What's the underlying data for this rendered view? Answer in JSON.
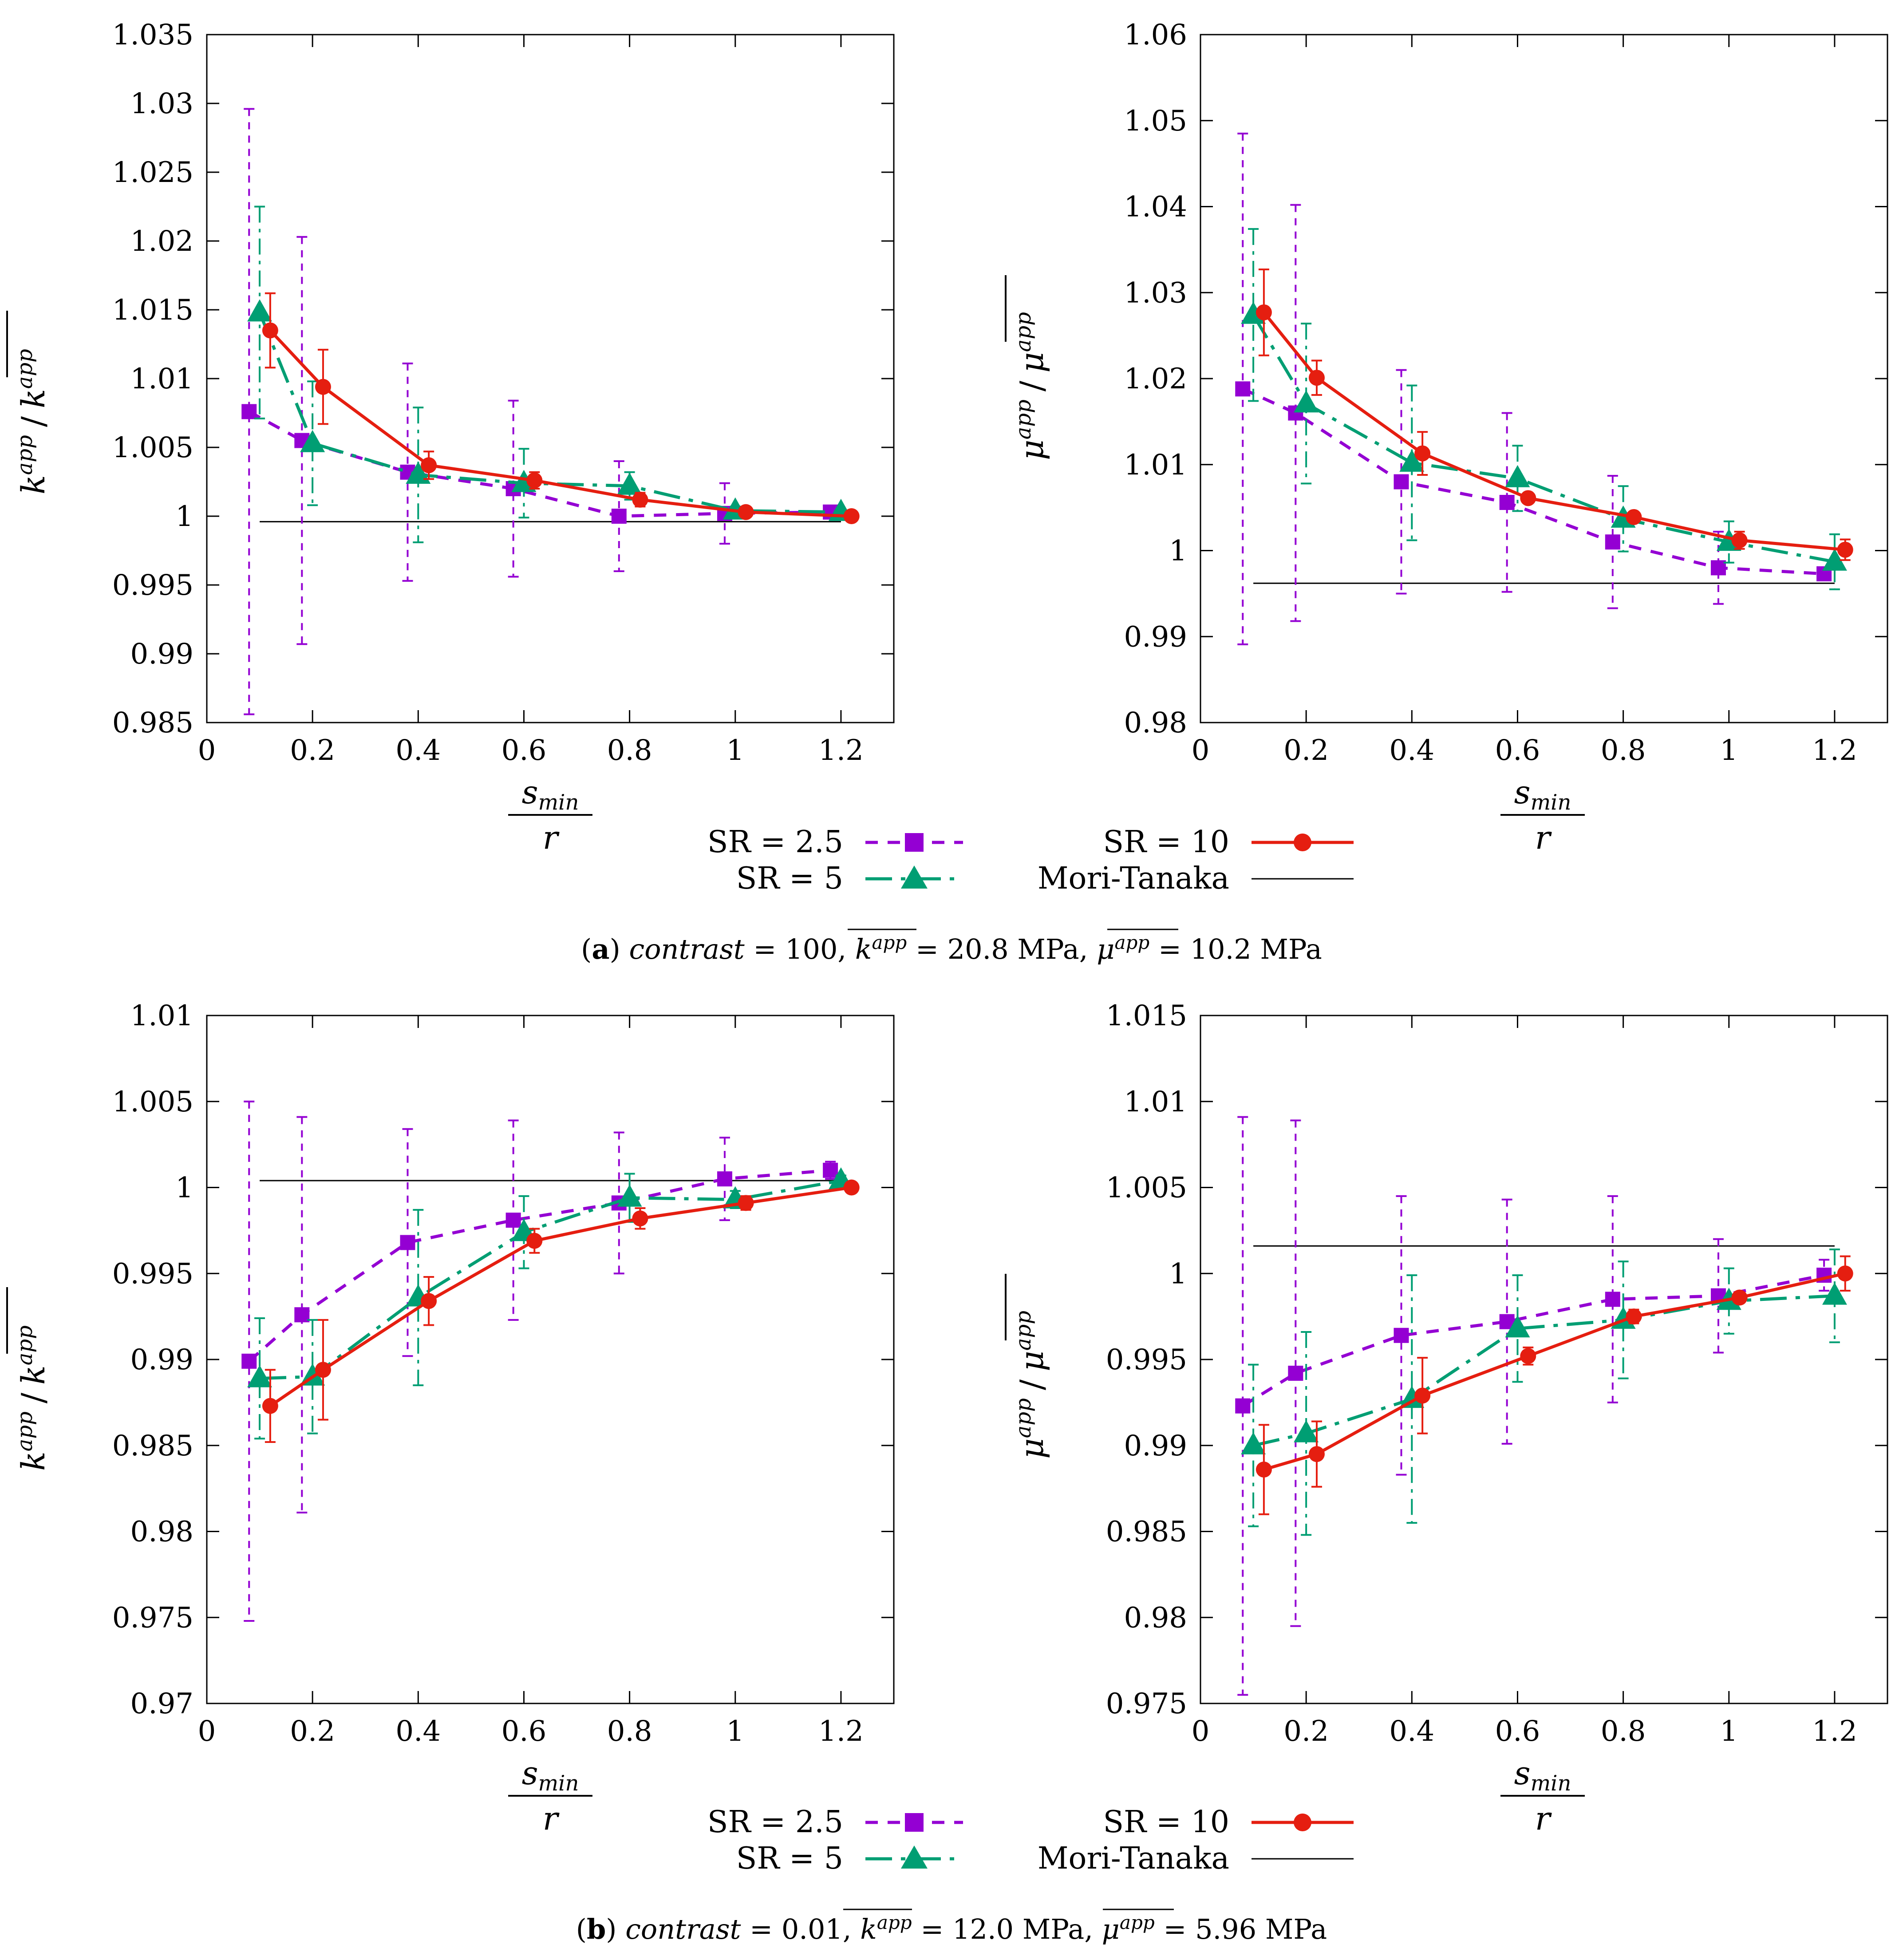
{
  "colors": {
    "sr25": "#9400d3",
    "sr5": "#009e73",
    "sr10": "#e51e10",
    "moriTanaka": "#000000"
  },
  "legend": {
    "sr25": "SR = 2.5",
    "sr5": "SR = 5",
    "sr10": "SR = 10",
    "mt": "Mori-Tanaka"
  },
  "captions": {
    "a": {
      "label": "a",
      "contrast_word": "contrast",
      "contrast_value": "= 100,",
      "k_sym": "k",
      "k_sup": "app",
      "k_value": "= 20.8 MPa,",
      "mu_sym": "μ",
      "mu_sup": "app",
      "mu_value": "= 10.2 MPa"
    },
    "b": {
      "label": "b",
      "contrast_word": "contrast",
      "contrast_value": "= 0.01,",
      "k_sym": "k",
      "k_sup": "app",
      "k_value": "= 12.0 MPa,",
      "mu_sym": "μ",
      "mu_sup": "app",
      "mu_value": "= 5.96 MPa"
    }
  },
  "axis_labels": {
    "x_num": "s",
    "x_num_sub": "min",
    "x_den": "r",
    "k_sym": "k",
    "mu_sym": "μ",
    "sup": "app",
    "slash": "/"
  },
  "chart_data": [
    {
      "id": "a-k",
      "type": "line",
      "title": "",
      "xlabel": "s_min / r",
      "ylabel": "k^app / mean(k^app)",
      "xlim": [
        0,
        1.3
      ],
      "ylim": [
        0.985,
        1.035
      ],
      "xticks": [
        "0",
        "0.2",
        "0.4",
        "0.6",
        "0.8",
        "1",
        "1.2"
      ],
      "yticks": [
        "0.985",
        "0.99",
        "0.995",
        "1",
        "1.005",
        "1.01",
        "1.015",
        "1.02",
        "1.025",
        "1.03",
        "1.035"
      ],
      "mori_tanaka": {
        "value": 0.9996,
        "xrange": [
          0.1,
          1.2
        ]
      },
      "series": [
        {
          "name": "SR = 2.5",
          "key": "sr25",
          "x": [
            0.08,
            0.18,
            0.38,
            0.58,
            0.78,
            0.98,
            1.18
          ],
          "y": [
            1.0076,
            1.0055,
            1.0032,
            1.002,
            1.0,
            1.0002,
            1.0003
          ],
          "err": [
            0.022,
            0.0148,
            0.0079,
            0.0064,
            0.004,
            0.0022,
            0.0003
          ]
        },
        {
          "name": "SR = 5",
          "key": "sr5",
          "x": [
            0.1,
            0.2,
            0.4,
            0.6,
            0.8,
            1.0,
            1.2
          ],
          "y": [
            1.0148,
            1.0053,
            1.003,
            1.0024,
            1.0022,
            1.0004,
            1.0003
          ],
          "err": [
            0.0077,
            0.0045,
            0.0049,
            0.0025,
            0.001,
            0.0003,
            0.0002
          ]
        },
        {
          "name": "SR = 10",
          "key": "sr10",
          "x": [
            0.12,
            0.22,
            0.42,
            0.62,
            0.82,
            1.02,
            1.22
          ],
          "y": [
            1.0135,
            1.0094,
            1.0037,
            1.0026,
            1.0012,
            1.0003,
            1.0
          ],
          "err": [
            0.0027,
            0.0027,
            0.001,
            0.0006,
            0.0005,
            0.0003,
            0.0001
          ]
        }
      ]
    },
    {
      "id": "a-mu",
      "type": "line",
      "title": "",
      "xlabel": "s_min / r",
      "ylabel": "μ^app / mean(μ^app)",
      "xlim": [
        0,
        1.3
      ],
      "ylim": [
        0.98,
        1.06
      ],
      "xticks": [
        "0",
        "0.2",
        "0.4",
        "0.6",
        "0.8",
        "1",
        "1.2"
      ],
      "yticks": [
        "0.98",
        "0.99",
        "1",
        "1.01",
        "1.02",
        "1.03",
        "1.04",
        "1.05",
        "1.06"
      ],
      "mori_tanaka": {
        "value": 0.9962,
        "xrange": [
          0.1,
          1.2
        ]
      },
      "series": [
        {
          "name": "SR = 2.5",
          "key": "sr25",
          "x": [
            0.08,
            0.18,
            0.38,
            0.58,
            0.78,
            0.98,
            1.18
          ],
          "y": [
            1.0188,
            1.016,
            1.008,
            1.0056,
            1.001,
            0.998,
            0.9973
          ],
          "err": [
            0.0297,
            0.0242,
            0.013,
            0.0104,
            0.0077,
            0.0042,
            0.0003
          ]
        },
        {
          "name": "SR = 5",
          "key": "sr5",
          "x": [
            0.1,
            0.2,
            0.4,
            0.6,
            0.8,
            1.0,
            1.2
          ],
          "y": [
            1.0274,
            1.0171,
            1.0102,
            1.0084,
            1.0037,
            1.001,
            0.9987
          ],
          "err": [
            0.01,
            0.0093,
            0.009,
            0.0038,
            0.0038,
            0.0024,
            0.0032
          ]
        },
        {
          "name": "SR = 10",
          "key": "sr10",
          "x": [
            0.12,
            0.22,
            0.42,
            0.62,
            0.82,
            1.02,
            1.22
          ],
          "y": [
            1.0277,
            1.0201,
            1.0113,
            1.0061,
            1.0039,
            1.0012,
            1.0001
          ],
          "err": [
            0.005,
            0.002,
            0.0025,
            0.0005,
            0.0005,
            0.001,
            0.0012
          ]
        }
      ]
    },
    {
      "id": "b-k",
      "type": "line",
      "title": "",
      "xlabel": "s_min / r",
      "ylabel": "k^app / mean(k^app)",
      "xlim": [
        0,
        1.3
      ],
      "ylim": [
        0.97,
        1.01
      ],
      "xticks": [
        "0",
        "0.2",
        "0.4",
        "0.6",
        "0.8",
        "1",
        "1.2"
      ],
      "yticks": [
        "0.97",
        "0.975",
        "0.98",
        "0.985",
        "0.99",
        "0.995",
        "1",
        "1.005",
        "1.01"
      ],
      "mori_tanaka": {
        "value": 1.0004,
        "xrange": [
          0.1,
          1.2
        ]
      },
      "series": [
        {
          "name": "SR = 2.5",
          "key": "sr25",
          "x": [
            0.08,
            0.18,
            0.38,
            0.58,
            0.78,
            0.98,
            1.18
          ],
          "y": [
            0.9899,
            0.9926,
            0.9968,
            0.9981,
            0.9991,
            1.0005,
            1.001
          ],
          "err": [
            0.0151,
            0.0115,
            0.0066,
            0.0058,
            0.0041,
            0.0024,
            0.0005
          ]
        },
        {
          "name": "SR = 5",
          "key": "sr5",
          "x": [
            0.1,
            0.2,
            0.4,
            0.6,
            0.8,
            1.0,
            1.2
          ],
          "y": [
            0.9889,
            0.989,
            0.9936,
            0.9974,
            0.9994,
            0.9993,
            1.0004
          ],
          "err": [
            0.0035,
            0.0033,
            0.0051,
            0.0021,
            0.0014,
            0.0005,
            0.0003
          ]
        },
        {
          "name": "SR = 10",
          "key": "sr10",
          "x": [
            0.12,
            0.22,
            0.42,
            0.62,
            0.82,
            1.02,
            1.22
          ],
          "y": [
            0.9873,
            0.9894,
            0.9934,
            0.9969,
            0.9982,
            0.9991,
            1.0
          ],
          "err": [
            0.0021,
            0.0029,
            0.0014,
            0.0007,
            0.0006,
            0.0004,
            0.0001
          ]
        }
      ]
    },
    {
      "id": "b-mu",
      "type": "line",
      "title": "",
      "xlabel": "s_min / r",
      "ylabel": "μ^app / mean(μ^app)",
      "xlim": [
        0,
        1.3
      ],
      "ylim": [
        0.975,
        1.015
      ],
      "xticks": [
        "0",
        "0.2",
        "0.4",
        "0.6",
        "0.8",
        "1",
        "1.2"
      ],
      "yticks": [
        "0.975",
        "0.98",
        "0.985",
        "0.99",
        "0.995",
        "1",
        "1.005",
        "1.01",
        "1.015"
      ],
      "mori_tanaka": {
        "value": 1.0016,
        "xrange": [
          0.1,
          1.2
        ]
      },
      "series": [
        {
          "name": "SR = 2.5",
          "key": "sr25",
          "x": [
            0.08,
            0.18,
            0.38,
            0.58,
            0.78,
            0.98,
            1.18
          ],
          "y": [
            0.9923,
            0.9942,
            0.9964,
            0.9972,
            0.9985,
            0.9987,
            0.9999
          ],
          "err": [
            0.0168,
            0.0147,
            0.0081,
            0.0071,
            0.006,
            0.0033,
            0.0009
          ]
        },
        {
          "name": "SR = 5",
          "key": "sr5",
          "x": [
            0.1,
            0.2,
            0.4,
            0.6,
            0.8,
            1.0,
            1.2
          ],
          "y": [
            0.99,
            0.9907,
            0.9927,
            0.9968,
            0.9973,
            0.9984,
            0.9987
          ],
          "err": [
            0.0047,
            0.0059,
            0.0072,
            0.0031,
            0.0034,
            0.0019,
            0.0027
          ]
        },
        {
          "name": "SR = 10",
          "key": "sr10",
          "x": [
            0.12,
            0.22,
            0.42,
            0.62,
            0.82,
            1.02,
            1.22
          ],
          "y": [
            0.9886,
            0.9895,
            0.9929,
            0.9952,
            0.9975,
            0.9986,
            1.0
          ],
          "err": [
            0.0026,
            0.0019,
            0.0022,
            0.0005,
            0.0004,
            0.0003,
            0.001
          ]
        }
      ]
    }
  ]
}
